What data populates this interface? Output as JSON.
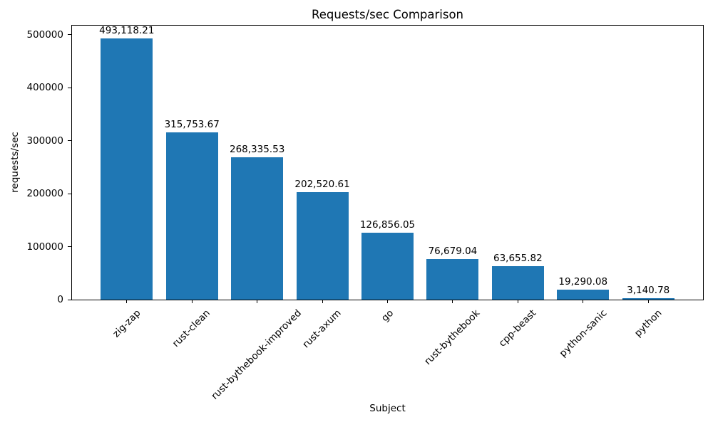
{
  "chart_data": {
    "type": "bar",
    "title": "Requests/sec Comparison",
    "xlabel": "Subject",
    "ylabel": "requests/sec",
    "categories": [
      "zig-zap",
      "rust-clean",
      "rust-bythebook-improved",
      "rust-axum",
      "go",
      "rust-bythebook",
      "cpp-beast",
      "python-sanic",
      "python"
    ],
    "values": [
      493118.21,
      315753.67,
      268335.53,
      202520.61,
      126856.05,
      76679.04,
      63655.82,
      19290.08,
      3140.78
    ],
    "value_labels": [
      "493,118.21",
      "315,753.67",
      "268,335.53",
      "202,520.61",
      "126,856.05",
      "76,679.04",
      "63,655.82",
      "19,290.08",
      "3,140.78"
    ],
    "yticks": [
      0,
      100000,
      200000,
      300000,
      400000,
      500000
    ],
    "ytick_labels": [
      "0",
      "100000",
      "200000",
      "300000",
      "400000",
      "500000"
    ],
    "ylim": [
      0,
      517774
    ],
    "bar_color": "#1f77b4",
    "axis_color": "#000000",
    "grid": false,
    "legend_position": "none",
    "x_tick_rotation_deg": 45
  }
}
